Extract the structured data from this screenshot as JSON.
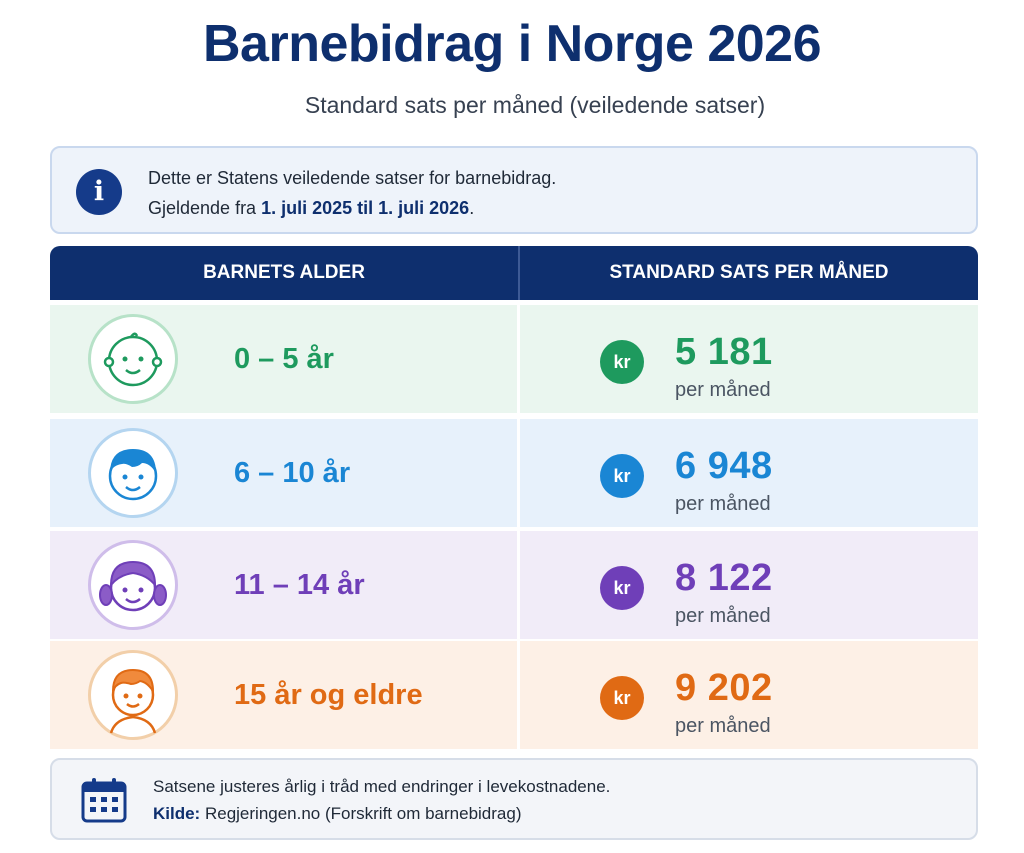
{
  "header": {
    "title": "Barnebidrag i Norge 2026",
    "subtitle": "Standard sats per måned (veiledende satser)"
  },
  "info": {
    "icon": "info-icon",
    "line1": "Dette er Statens veiledende satser for barnebidrag.",
    "line2_prefix": "Gjeldende fra ",
    "line2_bold": "1. juli 2025 til 1. juli 2026",
    "line2_suffix": "."
  },
  "table": {
    "col_age": "BARNETS ALDER",
    "col_rate": "STANDARD SATS PER MÅNED",
    "header_color": "#0e2f6e",
    "rows": [
      {
        "age": "0 – 5 år",
        "currency": "kr",
        "amount": "5 181",
        "per": "per måned",
        "color": "#1e9a5e",
        "avatar": "baby-face-icon"
      },
      {
        "age": "6 – 10 år",
        "currency": "kr",
        "amount": "6 948",
        "per": "per måned",
        "color": "#1a86d4",
        "avatar": "boy-face-icon"
      },
      {
        "age": "11 – 14 år",
        "currency": "kr",
        "amount": "8 122",
        "per": "per måned",
        "color": "#6f3fb8",
        "avatar": "girl-face-icon"
      },
      {
        "age": "15 år og eldre",
        "currency": "kr",
        "amount": "9 202",
        "per": "per måned",
        "color": "#e06a14",
        "avatar": "teen-face-icon"
      }
    ]
  },
  "footer": {
    "icon": "calendar-icon",
    "line1": "Satsene justeres årlig i tråd med endringer i levekostnadene.",
    "source_label": "Kilde:",
    "source_text": " Regjeringen.no (Forskrift om barnebidrag)"
  }
}
